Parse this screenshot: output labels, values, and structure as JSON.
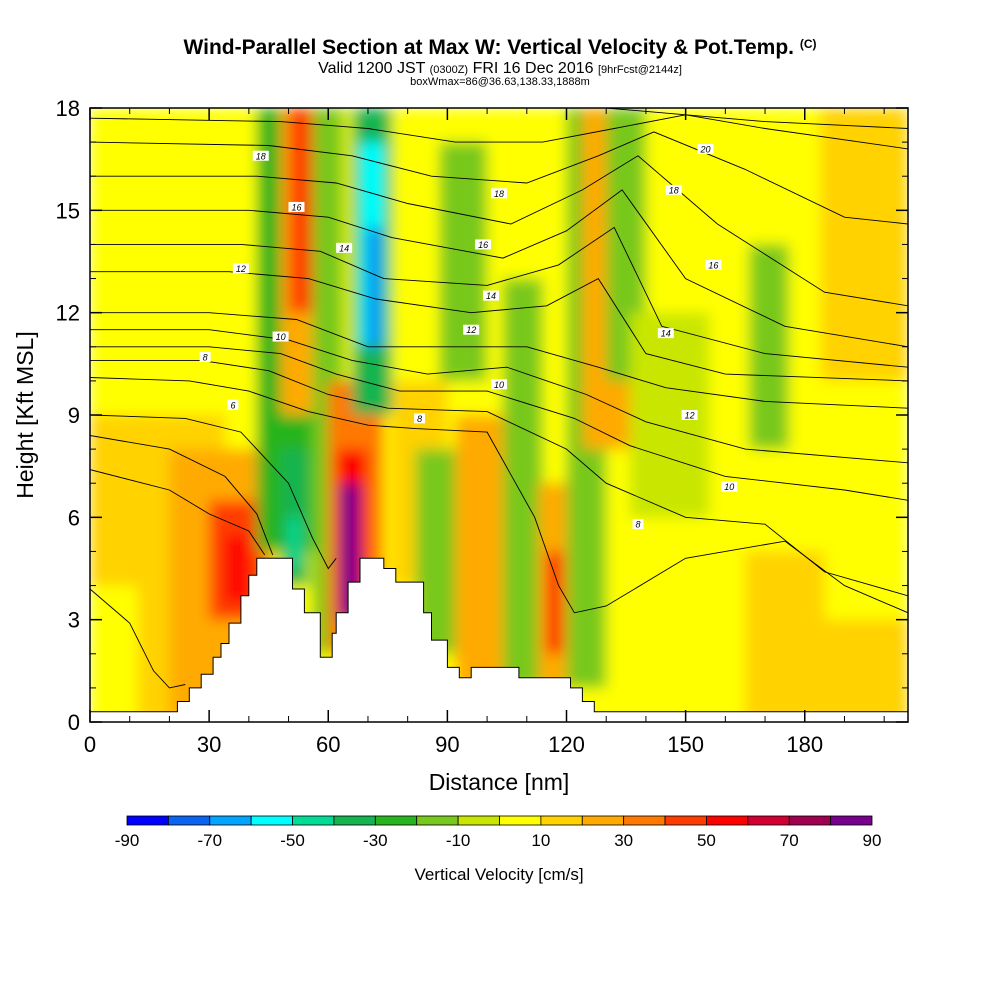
{
  "header": {
    "title_main": "Wind-Parallel Section at Max W: Vertical Velocity & Pot.Temp.",
    "title_mark": "(C)",
    "valid_prefix": "Valid 1200 JST",
    "valid_utc": "(0300Z)",
    "valid_date": "FRI 16 Dec 2016",
    "forecast": "[9hrFcst@2144z]",
    "boxw": "boxWmax=86@36.63,138.33,1888m"
  },
  "chart_data": {
    "type": "heatmap",
    "xlabel": "Distance [nm]",
    "ylabel": "Height [Kft MSL]",
    "xlim": [
      0,
      206
    ],
    "ylim": [
      0,
      18
    ],
    "x_ticks": [
      "0",
      "30",
      "60",
      "90",
      "120",
      "150",
      "180"
    ],
    "y_ticks": [
      "0",
      "3",
      "6",
      "9",
      "12",
      "15",
      "18"
    ],
    "colorbar": {
      "label": "Vertical Velocity [cm/s]",
      "min": -90,
      "max": 90,
      "step": 10,
      "tick_labels": [
        "-90",
        "-70",
        "-50",
        "-30",
        "-10",
        "10",
        "30",
        "50",
        "70",
        "90"
      ],
      "colors": [
        "#0000ff",
        "#0a64f0",
        "#00a5ff",
        "#00ffff",
        "#00dc96",
        "#14b450",
        "#28b41e",
        "#78c81e",
        "#c8e600",
        "#ffff00",
        "#ffd200",
        "#ffaa00",
        "#ff7800",
        "#ff3c00",
        "#ff0000",
        "#d20032",
        "#a00050",
        "#78008c"
      ]
    },
    "terrain": [
      [
        0,
        0.3
      ],
      [
        22,
        0.3
      ],
      [
        22,
        0.6
      ],
      [
        25,
        0.6
      ],
      [
        25,
        1.0
      ],
      [
        28,
        1.0
      ],
      [
        28,
        1.4
      ],
      [
        31,
        1.4
      ],
      [
        31,
        1.9
      ],
      [
        33,
        1.9
      ],
      [
        33,
        2.3
      ],
      [
        35,
        2.3
      ],
      [
        35,
        2.9
      ],
      [
        38,
        2.9
      ],
      [
        38,
        3.7
      ],
      [
        40,
        3.7
      ],
      [
        40,
        4.3
      ],
      [
        42,
        4.3
      ],
      [
        42,
        4.8
      ],
      [
        51,
        4.8
      ],
      [
        51,
        3.9
      ],
      [
        54,
        3.9
      ],
      [
        54,
        3.2
      ],
      [
        58,
        3.2
      ],
      [
        58,
        1.9
      ],
      [
        61,
        1.9
      ],
      [
        61,
        2.6
      ],
      [
        62,
        2.6
      ],
      [
        62,
        3.2
      ],
      [
        65,
        3.2
      ],
      [
        65,
        4.1
      ],
      [
        68,
        4.1
      ],
      [
        68,
        4.8
      ],
      [
        74,
        4.8
      ],
      [
        74,
        4.5
      ],
      [
        77,
        4.5
      ],
      [
        77,
        4.1
      ],
      [
        84,
        4.1
      ],
      [
        84,
        3.2
      ],
      [
        86,
        3.2
      ],
      [
        86,
        2.4
      ],
      [
        90,
        2.4
      ],
      [
        90,
        1.6
      ],
      [
        93,
        1.6
      ],
      [
        93,
        1.3
      ],
      [
        96,
        1.3
      ],
      [
        96,
        1.6
      ],
      [
        108,
        1.6
      ],
      [
        108,
        1.3
      ],
      [
        121,
        1.3
      ],
      [
        121,
        1.0
      ],
      [
        124,
        1.0
      ],
      [
        124,
        0.6
      ],
      [
        127,
        0.6
      ],
      [
        127,
        0.3
      ],
      [
        206,
        0.3
      ]
    ],
    "velocity_cells": [
      {
        "x": 0,
        "y": 9,
        "w": 206,
        "h": 9,
        "value": 5
      },
      {
        "x": 0,
        "y": 0,
        "w": 206,
        "h": 9,
        "value": 0
      },
      {
        "x": 0,
        "y": 4,
        "w": 15,
        "h": 5,
        "value": 12
      },
      {
        "x": 12,
        "y": 0,
        "w": 22,
        "h": 9,
        "value": 12
      },
      {
        "x": 20,
        "y": 0,
        "w": 26,
        "h": 8,
        "value": 24
      },
      {
        "x": 30,
        "y": 3,
        "w": 14,
        "h": 3.5,
        "value": 45
      },
      {
        "x": 34,
        "y": 3.5,
        "w": 6,
        "h": 2,
        "value": 55
      },
      {
        "x": 42,
        "y": 5,
        "w": 14,
        "h": 13,
        "value": -22
      },
      {
        "x": 48,
        "y": 4,
        "w": 7,
        "h": 4,
        "value": -35
      },
      {
        "x": 50,
        "y": 4.5,
        "w": 3,
        "h": 1.5,
        "value": -45
      },
      {
        "x": 48,
        "y": 9,
        "w": 12,
        "h": 9,
        "value": 28
      },
      {
        "x": 50,
        "y": 12,
        "w": 8,
        "h": 6,
        "value": 48
      },
      {
        "x": 56,
        "y": 2,
        "w": 8,
        "h": 16,
        "value": -15
      },
      {
        "x": 60,
        "y": 2,
        "w": 14,
        "h": 8,
        "value": 30
      },
      {
        "x": 62,
        "y": 3,
        "w": 8,
        "h": 5,
        "value": 55
      },
      {
        "x": 63,
        "y": 3,
        "w": 5,
        "h": 4,
        "value": 80
      },
      {
        "x": 66,
        "y": 9,
        "w": 10,
        "h": 9,
        "value": -35
      },
      {
        "x": 68,
        "y": 11,
        "w": 6,
        "h": 6,
        "value": -55
      },
      {
        "x": 70,
        "y": 11,
        "w": 3,
        "h": 3.5,
        "value": -75
      },
      {
        "x": 76,
        "y": 4,
        "w": 14,
        "h": 6,
        "value": 15
      },
      {
        "x": 82,
        "y": 2,
        "w": 10,
        "h": 6,
        "value": -15
      },
      {
        "x": 88,
        "y": 10,
        "w": 12,
        "h": 7,
        "value": -15
      },
      {
        "x": 92,
        "y": 1,
        "w": 14,
        "h": 8,
        "value": 24
      },
      {
        "x": 104,
        "y": 1,
        "w": 10,
        "h": 12,
        "value": -15
      },
      {
        "x": 113,
        "y": 1,
        "w": 8,
        "h": 6,
        "value": 28
      },
      {
        "x": 115,
        "y": 2,
        "w": 4,
        "h": 3,
        "value": 50
      },
      {
        "x": 120,
        "y": 1,
        "w": 10,
        "h": 17,
        "value": -18
      },
      {
        "x": 124,
        "y": 8,
        "w": 12,
        "h": 10,
        "value": 25
      },
      {
        "x": 130,
        "y": 10,
        "w": 10,
        "h": 8,
        "value": -12
      },
      {
        "x": 136,
        "y": 6,
        "w": 20,
        "h": 6,
        "value": -10
      },
      {
        "x": 166,
        "y": 8,
        "w": 10,
        "h": 6,
        "value": -15
      },
      {
        "x": 184,
        "y": 10,
        "w": 22,
        "h": 8,
        "value": 12
      },
      {
        "x": 165,
        "y": 0,
        "w": 20,
        "h": 5,
        "value": 10
      },
      {
        "x": 180,
        "y": 0,
        "w": 26,
        "h": 3,
        "value": 10
      }
    ],
    "isentropes": [
      {
        "label": "6",
        "points": [
          [
            0,
            3.9
          ],
          [
            10,
            2.9
          ],
          [
            16,
            1.5
          ],
          [
            20,
            1.0
          ],
          [
            24,
            1.1
          ]
        ]
      },
      {
        "label": "6",
        "points": [
          [
            0,
            8.4
          ],
          [
            20,
            8.0
          ],
          [
            34,
            7.2
          ],
          [
            42,
            6.1
          ],
          [
            46,
            4.9
          ]
        ]
      },
      {
        "label": "8",
        "points": [
          [
            0,
            7.4
          ],
          [
            20,
            6.8
          ],
          [
            30,
            6.1
          ],
          [
            40,
            5.6
          ],
          [
            44,
            4.9
          ]
        ]
      },
      {
        "label": "6",
        "points": [
          [
            0,
            9.0
          ],
          [
            24,
            8.9
          ],
          [
            38,
            8.5
          ],
          [
            50,
            7.0
          ],
          [
            56,
            5.4
          ],
          [
            60,
            4.5
          ],
          [
            62,
            4.8
          ]
        ]
      },
      {
        "label": "8",
        "points": [
          [
            0,
            10.1
          ],
          [
            25,
            10.0
          ],
          [
            40,
            9.7
          ],
          [
            55,
            9.1
          ],
          [
            70,
            8.7
          ],
          [
            82,
            8.6
          ],
          [
            100,
            8.5
          ],
          [
            112,
            6.0
          ],
          [
            118,
            4.0
          ],
          [
            122,
            3.2
          ],
          [
            130,
            3.4
          ],
          [
            150,
            4.8
          ],
          [
            175,
            5.3
          ],
          [
            190,
            4.0
          ],
          [
            206,
            3.2
          ]
        ]
      },
      {
        "label": "8",
        "points": [
          [
            0,
            10.6
          ],
          [
            28,
            10.6
          ],
          [
            45,
            10.3
          ],
          [
            60,
            9.6
          ],
          [
            75,
            9.2
          ],
          [
            100,
            9.1
          ],
          [
            120,
            8.0
          ],
          [
            130,
            7.0
          ],
          [
            150,
            6.0
          ],
          [
            170,
            5.8
          ],
          [
            185,
            4.4
          ],
          [
            206,
            3.7
          ]
        ]
      },
      {
        "label": "10",
        "points": [
          [
            0,
            11.0
          ],
          [
            30,
            11.0
          ],
          [
            48,
            10.8
          ],
          [
            62,
            10.2
          ],
          [
            78,
            9.7
          ],
          [
            100,
            9.7
          ],
          [
            122,
            8.9
          ],
          [
            136,
            8.1
          ],
          [
            160,
            7.2
          ],
          [
            190,
            6.8
          ],
          [
            206,
            6.5
          ]
        ]
      },
      {
        "label": "10",
        "points": [
          [
            0,
            11.5
          ],
          [
            30,
            11.5
          ],
          [
            50,
            11.2
          ],
          [
            66,
            10.6
          ],
          [
            85,
            10.2
          ],
          [
            105,
            10.4
          ],
          [
            125,
            9.6
          ],
          [
            140,
            8.8
          ],
          [
            165,
            8.0
          ],
          [
            206,
            7.6
          ]
        ]
      },
      {
        "label": "12",
        "points": [
          [
            0,
            12.0
          ],
          [
            30,
            12.0
          ],
          [
            52,
            11.8
          ],
          [
            70,
            11.0
          ],
          [
            92,
            11.0
          ],
          [
            110,
            11.0
          ],
          [
            128,
            10.4
          ],
          [
            145,
            9.8
          ],
          [
            170,
            9.4
          ],
          [
            206,
            9.2
          ]
        ]
      },
      {
        "label": "12",
        "points": [
          [
            0,
            13.2
          ],
          [
            35,
            13.2
          ],
          [
            55,
            13.0
          ],
          [
            72,
            12.4
          ],
          [
            96,
            12.0
          ],
          [
            115,
            12.2
          ],
          [
            128,
            13.0
          ],
          [
            140,
            10.8
          ],
          [
            160,
            10.2
          ],
          [
            206,
            10.0
          ]
        ]
      },
      {
        "label": "14",
        "points": [
          [
            0,
            14.0
          ],
          [
            38,
            14.0
          ],
          [
            58,
            13.8
          ],
          [
            74,
            13.0
          ],
          [
            100,
            12.8
          ],
          [
            118,
            13.4
          ],
          [
            132,
            14.5
          ],
          [
            144,
            11.6
          ],
          [
            170,
            10.8
          ],
          [
            206,
            10.4
          ]
        ]
      },
      {
        "label": "14",
        "points": [
          [
            0,
            15.0
          ],
          [
            40,
            15.0
          ],
          [
            60,
            14.8
          ],
          [
            76,
            14.2
          ],
          [
            104,
            13.6
          ],
          [
            120,
            14.4
          ],
          [
            134,
            15.6
          ],
          [
            150,
            13.0
          ],
          [
            175,
            11.6
          ],
          [
            206,
            11.0
          ]
        ]
      },
      {
        "label": "16",
        "points": [
          [
            0,
            16.0
          ],
          [
            42,
            16.0
          ],
          [
            62,
            15.8
          ],
          [
            80,
            15.2
          ],
          [
            106,
            14.6
          ],
          [
            124,
            15.6
          ],
          [
            138,
            16.6
          ],
          [
            158,
            14.6
          ],
          [
            185,
            12.6
          ],
          [
            206,
            12.2
          ]
        ]
      },
      {
        "label": "16",
        "points": [
          [
            0,
            17.0
          ],
          [
            45,
            16.9
          ],
          [
            66,
            16.6
          ],
          [
            86,
            16.0
          ],
          [
            110,
            15.8
          ],
          [
            128,
            16.6
          ],
          [
            142,
            17.3
          ],
          [
            165,
            16.2
          ],
          [
            190,
            14.8
          ],
          [
            206,
            14.6
          ]
        ]
      },
      {
        "label": "18",
        "points": [
          [
            0,
            17.7
          ],
          [
            48,
            17.6
          ],
          [
            70,
            17.4
          ],
          [
            92,
            17.0
          ],
          [
            114,
            17.0
          ],
          [
            132,
            17.4
          ],
          [
            150,
            17.8
          ],
          [
            170,
            17.4
          ],
          [
            206,
            16.8
          ]
        ]
      },
      {
        "label": "20",
        "points": [
          [
            130,
            18.0
          ],
          [
            150,
            17.8
          ],
          [
            170,
            17.6
          ],
          [
            206,
            17.4
          ]
        ]
      }
    ],
    "contour_labels": [
      {
        "x": 43,
        "y": 16.6,
        "label": "18"
      },
      {
        "x": 52,
        "y": 15.1,
        "label": "16"
      },
      {
        "x": 64,
        "y": 13.9,
        "label": "14"
      },
      {
        "x": 38,
        "y": 13.3,
        "label": "12"
      },
      {
        "x": 48,
        "y": 11.3,
        "label": "10"
      },
      {
        "x": 29,
        "y": 10.7,
        "label": "8"
      },
      {
        "x": 36,
        "y": 9.3,
        "label": "6"
      },
      {
        "x": 83,
        "y": 8.9,
        "label": "8"
      },
      {
        "x": 103,
        "y": 9.9,
        "label": "10"
      },
      {
        "x": 96,
        "y": 11.5,
        "label": "12"
      },
      {
        "x": 101,
        "y": 12.5,
        "label": "14"
      },
      {
        "x": 99,
        "y": 14.0,
        "label": "16"
      },
      {
        "x": 103,
        "y": 15.5,
        "label": "18"
      },
      {
        "x": 155,
        "y": 16.8,
        "label": "20"
      },
      {
        "x": 147,
        "y": 15.6,
        "label": "18"
      },
      {
        "x": 157,
        "y": 13.4,
        "label": "16"
      },
      {
        "x": 145,
        "y": 11.4,
        "label": "14"
      },
      {
        "x": 151,
        "y": 9.0,
        "label": "12"
      },
      {
        "x": 161,
        "y": 6.9,
        "label": "10"
      },
      {
        "x": 138,
        "y": 5.8,
        "label": "8"
      }
    ]
  }
}
